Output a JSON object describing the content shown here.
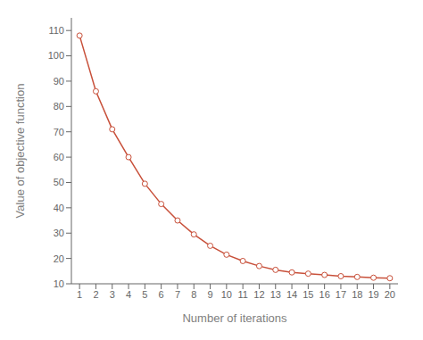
{
  "chart_data": {
    "type": "line",
    "x": [
      1,
      2,
      3,
      4,
      5,
      6,
      7,
      8,
      9,
      10,
      11,
      12,
      13,
      14,
      15,
      16,
      17,
      18,
      19,
      20
    ],
    "values": [
      108,
      86,
      71,
      60,
      49.5,
      41.5,
      35,
      29.5,
      25,
      21.5,
      19,
      17,
      15.5,
      14.5,
      14,
      13.5,
      13,
      12.7,
      12.4,
      12.2
    ],
    "color": "#C8503A",
    "marker": "circle",
    "xlabel": "Number of iterations",
    "ylabel": "Value of objective function",
    "xlim": [
      0.5,
      20.5
    ],
    "ylim": [
      10,
      115
    ],
    "xticks": [
      1,
      2,
      3,
      4,
      5,
      6,
      7,
      8,
      9,
      10,
      11,
      12,
      13,
      14,
      15,
      16,
      17,
      18,
      19,
      20
    ],
    "yticks": [
      10,
      20,
      30,
      40,
      50,
      60,
      70,
      80,
      90,
      100,
      110
    ],
    "grid": false
  }
}
